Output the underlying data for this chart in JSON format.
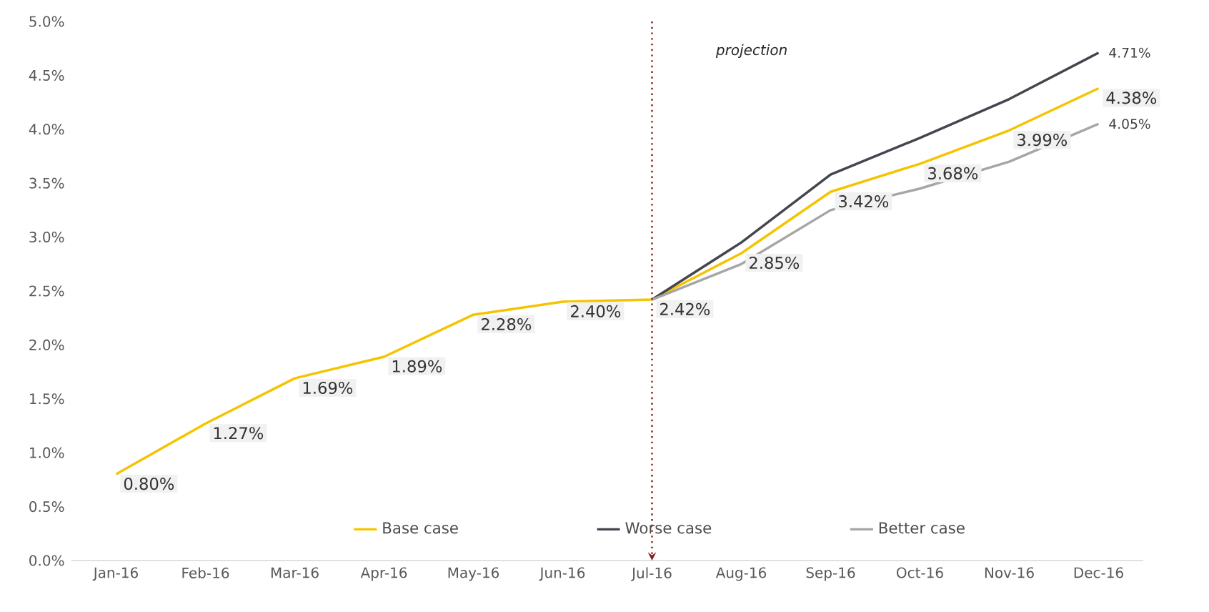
{
  "chart_data": {
    "type": "line",
    "categories": [
      "Jan-16",
      "Feb-16",
      "Mar-16",
      "Apr-16",
      "May-16",
      "Jun-16",
      "Jul-16",
      "Aug-16",
      "Sep-16",
      "Oct-16",
      "Nov-16",
      "Dec-16"
    ],
    "series": [
      {
        "name": "Base case",
        "color": "#f5c400",
        "values": [
          0.8,
          1.27,
          1.69,
          1.89,
          2.28,
          2.4,
          2.42,
          2.85,
          3.42,
          3.68,
          3.99,
          4.38
        ],
        "value_labels": [
          "0.80%",
          "1.27%",
          "1.69%",
          "1.89%",
          "2.28%",
          "2.40%",
          "2.42%",
          "2.85%",
          "3.42%",
          "3.68%",
          "3.99%",
          "4.38%"
        ]
      },
      {
        "name": "Worse case",
        "color": "#45454f",
        "values": [
          null,
          null,
          null,
          null,
          null,
          null,
          2.42,
          2.95,
          3.58,
          3.92,
          4.28,
          4.71
        ],
        "value_labels": [
          null,
          null,
          null,
          null,
          null,
          null,
          null,
          null,
          null,
          null,
          null,
          "4.71%"
        ]
      },
      {
        "name": "Better case",
        "color": "#a6a6a6",
        "values": [
          null,
          null,
          null,
          null,
          null,
          null,
          2.42,
          2.75,
          3.25,
          3.45,
          3.7,
          4.05
        ],
        "value_labels": [
          null,
          null,
          null,
          null,
          null,
          null,
          null,
          null,
          null,
          null,
          null,
          "4.05%"
        ]
      }
    ],
    "ylim": [
      0,
      5
    ],
    "yticks": [
      {
        "value": 0,
        "label": "0.0%"
      },
      {
        "value": 0.5,
        "label": "0.5%"
      },
      {
        "value": 1,
        "label": "1.0%"
      },
      {
        "value": 1.5,
        "label": "1.5%"
      },
      {
        "value": 2,
        "label": "2.0%"
      },
      {
        "value": 2.5,
        "label": "2.5%"
      },
      {
        "value": 3,
        "label": "3.0%"
      },
      {
        "value": 3.5,
        "label": "3.5%"
      },
      {
        "value": 4,
        "label": "4.0%"
      },
      {
        "value": 4.5,
        "label": "4.5%"
      },
      {
        "value": 5,
        "label": "5.0%"
      }
    ],
    "ref_lines": [
      {
        "axis": "x",
        "value": "Jul-16",
        "color": "#8b1a1a",
        "line_style": "dotted"
      }
    ],
    "annotations": [
      "projection"
    ],
    "legend": "bottom"
  }
}
